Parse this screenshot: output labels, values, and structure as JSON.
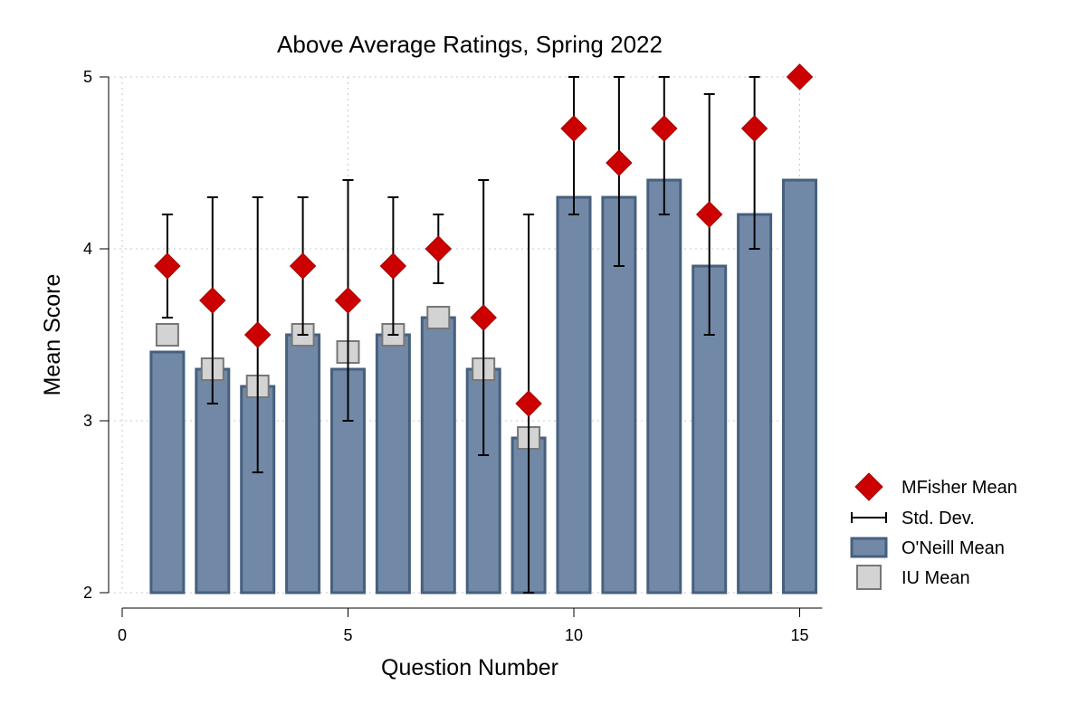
{
  "chart_data": {
    "type": "bar",
    "title": "Above Average Ratings, Spring 2022",
    "xlabel": "Question Number",
    "ylabel": "Mean Score",
    "xlim": [
      0,
      15.5
    ],
    "ylim": [
      2,
      5
    ],
    "xticks": [
      "0",
      "5",
      "10",
      "15"
    ],
    "yticks": [
      "2",
      "3",
      "4",
      "5"
    ],
    "grid": true,
    "legend_position": "right",
    "x": [
      1,
      2,
      3,
      4,
      5,
      6,
      7,
      8,
      9,
      10,
      11,
      12,
      13,
      14,
      15
    ],
    "series": [
      {
        "name": "MFisher Mean",
        "type": "scatter",
        "marker": "diamond",
        "color": "#cc0000",
        "values": [
          3.9,
          3.7,
          3.5,
          3.9,
          3.7,
          3.9,
          4.0,
          3.6,
          3.1,
          4.7,
          4.5,
          4.7,
          4.2,
          4.7,
          5.0
        ]
      },
      {
        "name": "Std. Dev.",
        "type": "errorbar",
        "color": "#000000",
        "low": [
          3.6,
          3.1,
          2.7,
          3.5,
          3.0,
          3.5,
          3.8,
          2.8,
          2.0,
          4.2,
          3.9,
          4.2,
          3.5,
          4.0,
          null
        ],
        "high": [
          4.2,
          4.3,
          4.3,
          4.3,
          4.4,
          4.3,
          4.2,
          4.4,
          4.2,
          5.0,
          5.0,
          5.0,
          4.9,
          5.0,
          null
        ]
      },
      {
        "name": "O'Neill Mean",
        "type": "bar",
        "color": "#7189a6",
        "edge_color": "#46607e",
        "values": [
          3.4,
          3.3,
          3.2,
          3.5,
          3.3,
          3.5,
          3.6,
          3.3,
          2.9,
          4.3,
          4.3,
          4.4,
          3.9,
          4.2,
          4.4
        ]
      },
      {
        "name": "IU Mean",
        "type": "scatter",
        "marker": "square",
        "color": "#d3d3d3",
        "edge_color": "#777777",
        "values": [
          3.5,
          3.3,
          3.2,
          3.5,
          3.4,
          3.5,
          3.6,
          3.3,
          2.9,
          null,
          null,
          null,
          null,
          null,
          null
        ]
      }
    ]
  }
}
